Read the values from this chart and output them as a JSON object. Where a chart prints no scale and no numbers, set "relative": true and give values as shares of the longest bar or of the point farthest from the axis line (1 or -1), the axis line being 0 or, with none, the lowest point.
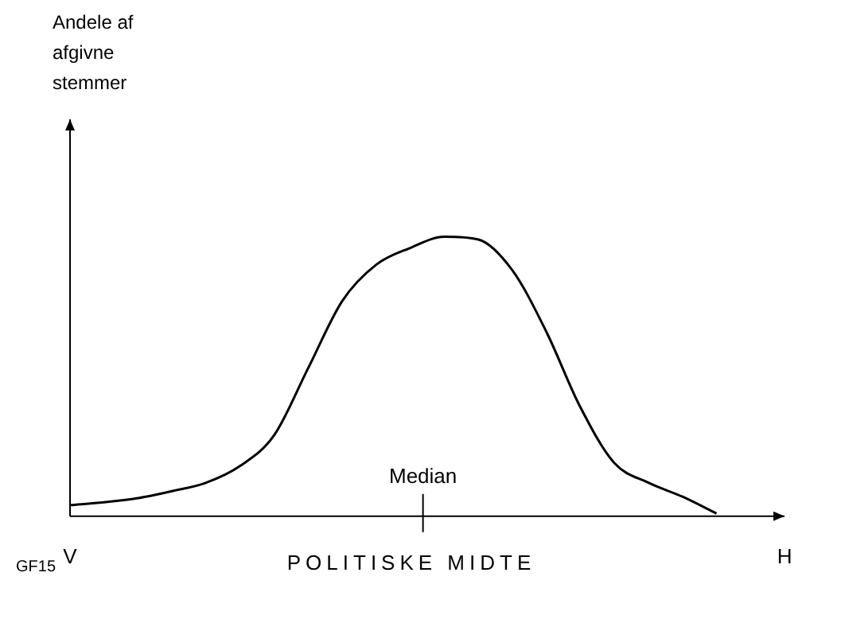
{
  "chart_data": {
    "type": "line",
    "relative": true,
    "xlabel": "POLITISKE MIDTE",
    "categories": [
      "V",
      null,
      null,
      null,
      null,
      null,
      null,
      null,
      null,
      null,
      null,
      null,
      null,
      null,
      null,
      null,
      null,
      null,
      null,
      null,
      null,
      "H"
    ],
    "series": [
      {
        "color": "#000000",
        "values": [
          0.04,
          0.05,
          0.065,
          0.09,
          0.12,
          0.18,
          0.29,
          0.53,
          0.77,
          0.9,
          0.96,
          1,
          0.99,
          0.88,
          0.66,
          0.39,
          0.19,
          0.12,
          0.07,
          0.01,
          null,
          null
        ]
      }
    ],
    "annotations": [
      "Median",
      "GF15",
      "Andele af afgivne stemmer"
    ]
  }
}
